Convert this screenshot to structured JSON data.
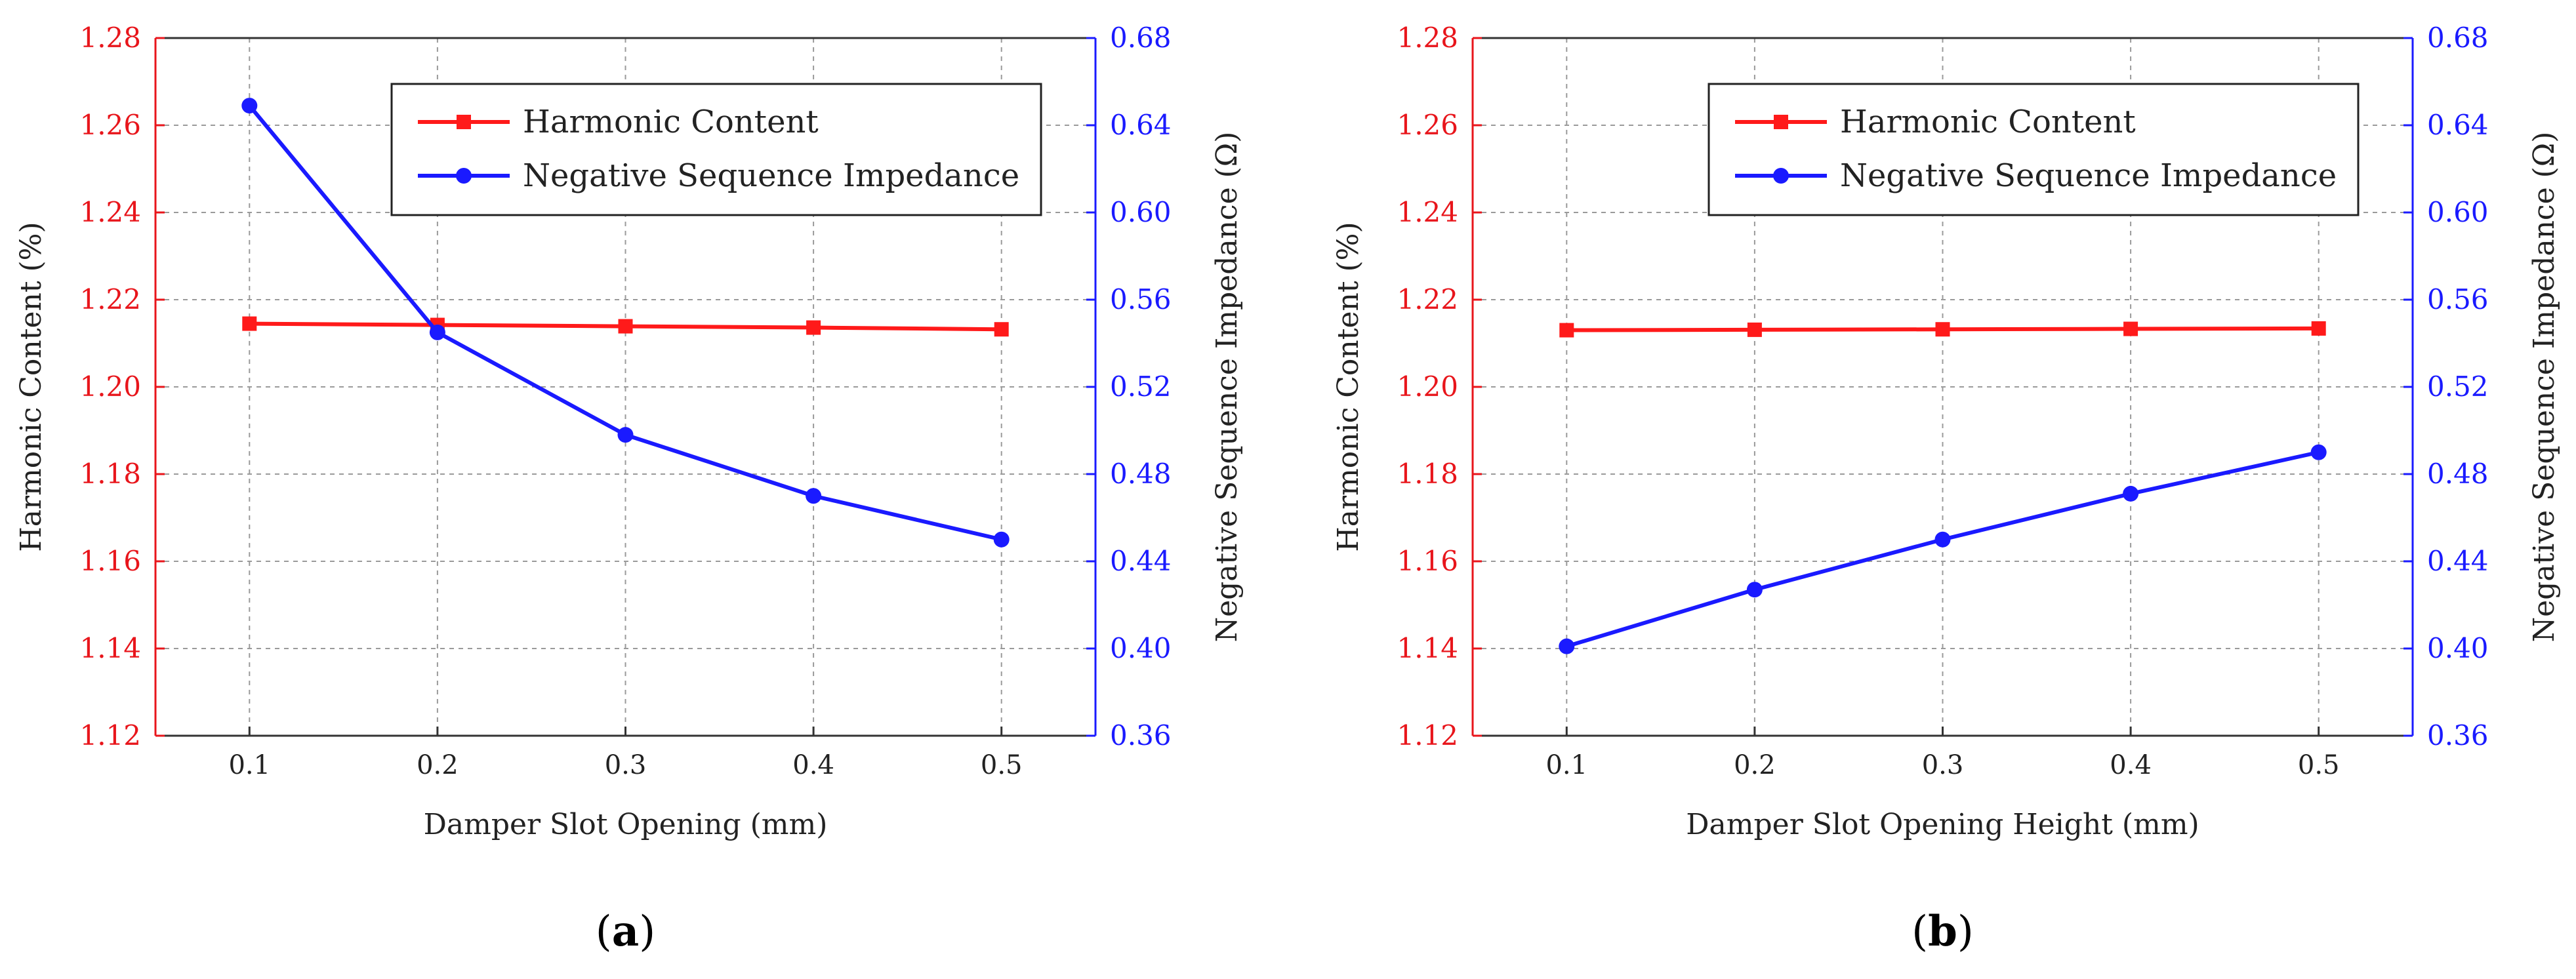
{
  "colors": {
    "hc": "#ff1a1a",
    "nsi": "#1a1aff",
    "left_axis": "#e8151b",
    "right_axis": "#1a1aff"
  },
  "chart_data": [
    {
      "type": "line",
      "panel_label": "a",
      "xlabel": "Damper Slot Opening (mm)",
      "ylabel_left": "Harmonic Content (%)",
      "ylabel_right": "Negative Sequence Impedance (Ω)",
      "x": [
        0.1,
        0.2,
        0.3,
        0.4,
        0.5
      ],
      "x_ticks": [
        "0.1",
        "0.2",
        "0.3",
        "0.4",
        "0.5"
      ],
      "xlim": [
        0.05,
        0.55
      ],
      "ylim_left": [
        1.12,
        1.28
      ],
      "ylim_right": [
        0.36,
        0.68
      ],
      "y_ticks_left": [
        "1.12",
        "1.14",
        "1.16",
        "1.18",
        "1.20",
        "1.22",
        "1.24",
        "1.26",
        "1.28"
      ],
      "y_ticks_right": [
        "0.36",
        "0.40",
        "0.44",
        "0.48",
        "0.52",
        "0.56",
        "0.60",
        "0.64",
        "0.68"
      ],
      "grid": true,
      "legend_position": "top-right",
      "series": [
        {
          "name": "Harmonic Content",
          "axis": "left",
          "marker": "square",
          "values": [
            1.2145,
            1.2142,
            1.2139,
            1.2136,
            1.2132
          ]
        },
        {
          "name": "Negative Sequence Impedance",
          "axis": "right",
          "marker": "circle",
          "values": [
            0.649,
            0.545,
            0.498,
            0.47,
            0.45
          ]
        }
      ]
    },
    {
      "type": "line",
      "panel_label": "b",
      "xlabel": "Damper Slot Opening Height (mm)",
      "ylabel_left": "Harmonic Content (%)",
      "ylabel_right": "Negative Sequence Impedance (Ω)",
      "x": [
        0.1,
        0.2,
        0.3,
        0.4,
        0.5
      ],
      "x_ticks": [
        "0.1",
        "0.2",
        "0.3",
        "0.4",
        "0.5"
      ],
      "xlim": [
        0.05,
        0.55
      ],
      "ylim_left": [
        1.12,
        1.28
      ],
      "ylim_right": [
        0.36,
        0.68
      ],
      "y_ticks_left": [
        "1.12",
        "1.14",
        "1.16",
        "1.18",
        "1.20",
        "1.22",
        "1.24",
        "1.26",
        "1.28"
      ],
      "y_ticks_right": [
        "0.36",
        "0.40",
        "0.44",
        "0.48",
        "0.52",
        "0.56",
        "0.60",
        "0.64",
        "0.68"
      ],
      "grid": true,
      "legend_position": "top-right",
      "series": [
        {
          "name": "Harmonic Content",
          "axis": "left",
          "marker": "square",
          "values": [
            1.213,
            1.2131,
            1.2132,
            1.2133,
            1.2134
          ]
        },
        {
          "name": "Negative Sequence Impedance",
          "axis": "right",
          "marker": "circle",
          "values": [
            0.401,
            0.427,
            0.45,
            0.471,
            0.49
          ]
        }
      ]
    }
  ]
}
